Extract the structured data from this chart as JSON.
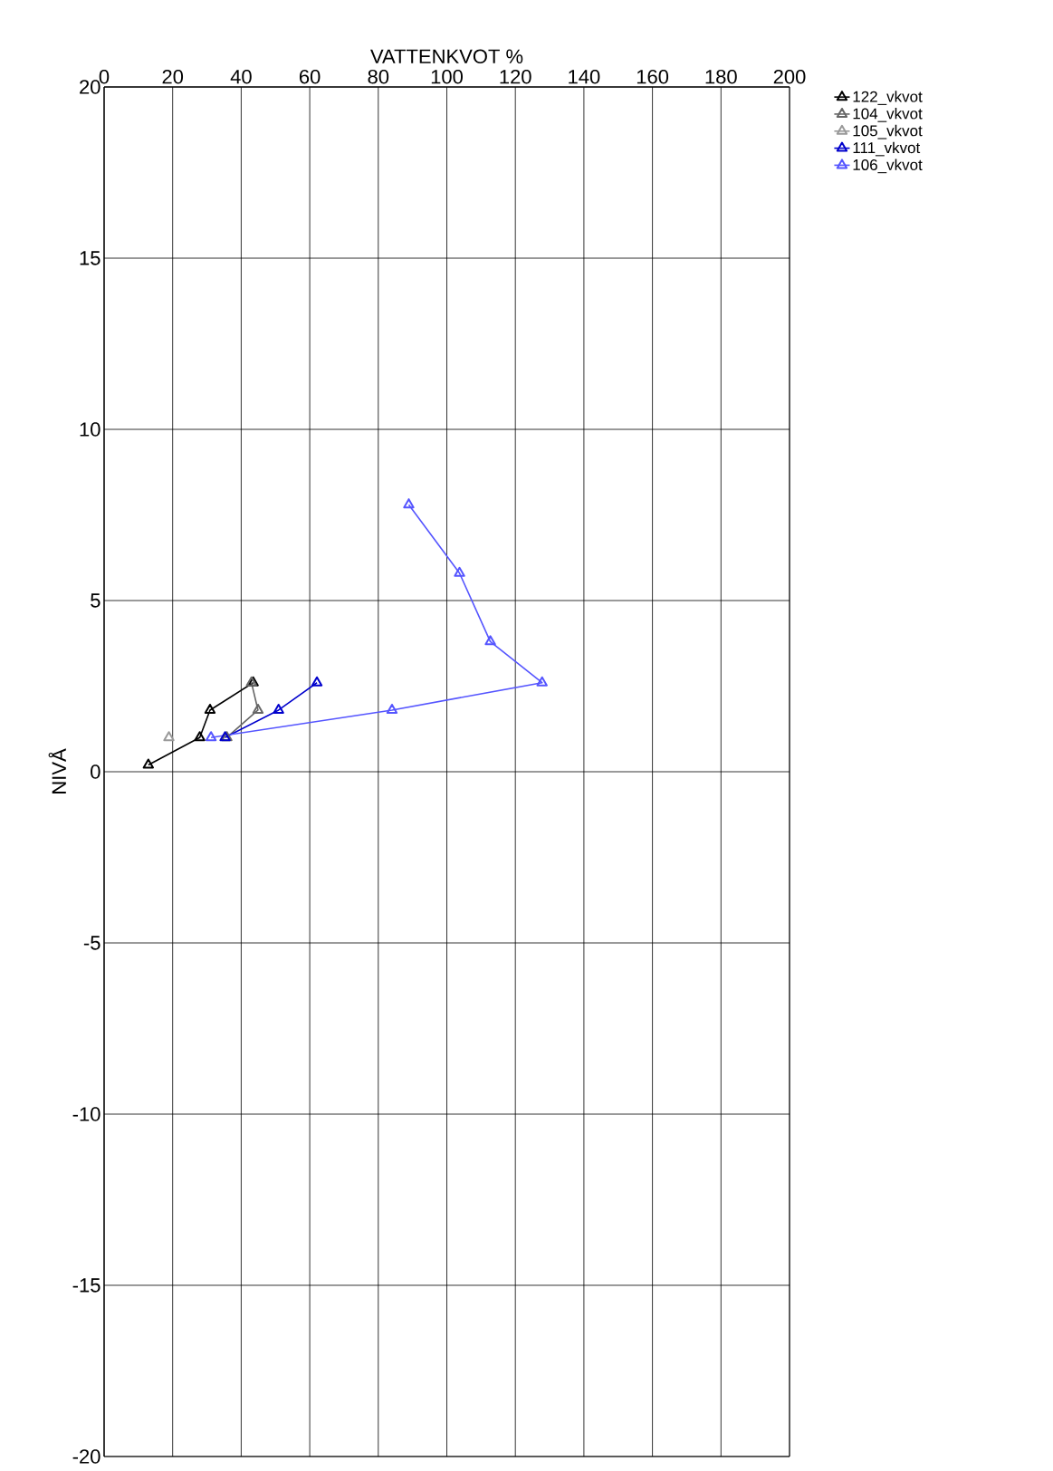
{
  "chart_data": {
    "type": "line",
    "xlabel": "VATTENKVOT  %",
    "ylabel": "NIVÅ",
    "xlim": [
      0,
      200
    ],
    "xticks": [
      0,
      20,
      40,
      60,
      80,
      100,
      120,
      140,
      160,
      180,
      200
    ],
    "ylim": [
      -20,
      20
    ],
    "yticks": [
      -20,
      -15,
      -10,
      -5,
      0,
      5,
      10,
      15,
      20
    ],
    "grid": true,
    "legend": "top right",
    "marker": "triangle",
    "line_style": "solid",
    "series": [
      {
        "name": "122_vkvot",
        "color": "#000000",
        "x": [
          12.9,
          27.9,
          30.9,
          43.5
        ],
        "values": [
          0.2,
          1.0,
          1.8,
          2.6
        ]
      },
      {
        "name": "104_vkvot",
        "color": "#666666",
        "x": [
          43.0,
          44.9,
          35.8
        ],
        "values": [
          2.6,
          1.8,
          1.0
        ]
      },
      {
        "name": "105_vkvot",
        "color": "#999999",
        "x": [
          18.9
        ],
        "values": [
          1.0
        ]
      },
      {
        "name": "111_vkvot",
        "color": "#0000cc",
        "x": [
          62.1,
          50.9,
          35.3
        ],
        "values": [
          2.6,
          1.8,
          1.0
        ]
      },
      {
        "name": "106_vkvot",
        "color": "#5555ff",
        "x": [
          88.9,
          103.7,
          112.7,
          127.8,
          84.0,
          31.2
        ],
        "values": [
          7.8,
          5.8,
          3.8,
          2.6,
          1.8,
          1.0
        ]
      }
    ]
  }
}
